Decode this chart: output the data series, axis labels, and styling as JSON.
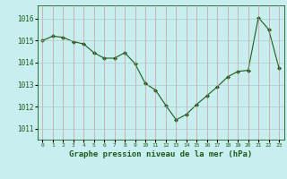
{
  "x": [
    0,
    1,
    2,
    3,
    4,
    5,
    6,
    7,
    8,
    9,
    10,
    11,
    12,
    13,
    14,
    15,
    16,
    17,
    18,
    19,
    20,
    21,
    22,
    23
  ],
  "y": [
    1015.0,
    1015.2,
    1015.15,
    1014.95,
    1014.85,
    1014.45,
    1014.2,
    1014.2,
    1014.45,
    1013.95,
    1013.05,
    1012.75,
    1012.05,
    1011.4,
    1011.65,
    1012.1,
    1012.5,
    1012.9,
    1013.35,
    1013.6,
    1013.65,
    1016.05,
    1015.5,
    1013.75
  ],
  "line_color": "#1a5c1a",
  "marker": "D",
  "marker_size": 2.0,
  "bg_color": "#c8eef0",
  "grid_color": "#b0c8c8",
  "xlabel": "Graphe pression niveau de la mer (hPa)",
  "xlabel_fontsize": 6.5,
  "yticks": [
    1011,
    1012,
    1013,
    1014,
    1015,
    1016
  ],
  "ylim": [
    1010.5,
    1016.6
  ],
  "xlim": [
    -0.5,
    23.5
  ],
  "xtick_labels": [
    "0",
    "1",
    "2",
    "3",
    "4",
    "5",
    "6",
    "7",
    "8",
    "9",
    "10",
    "11",
    "12",
    "13",
    "14",
    "15",
    "16",
    "17",
    "18",
    "19",
    "20",
    "21",
    "22",
    "23"
  ]
}
